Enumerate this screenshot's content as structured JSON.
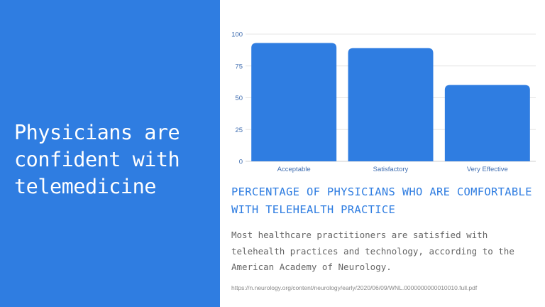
{
  "headline": "Physicians are\nconfident with\ntelemedicine",
  "title": "Percentage of physicians who are comfortable with telehealth practice",
  "description": "Most healthcare practitioners are satisfied with telehealth practices and technology, according to the American Academy of Neurology.",
  "source": "https://n.neurology.org/content/neurology/early/2020/06/09/WNL.0000000000010010.full.pdf",
  "colors": {
    "panel": "#2f7de1",
    "bar": "#2f7de1",
    "grid": "#e6e6e6",
    "axis_text": "#3f6db0"
  },
  "chart_data": {
    "type": "bar",
    "categories": [
      "Acceptable",
      "Satisfactory",
      "Very Effective"
    ],
    "values": [
      93,
      89,
      60
    ],
    "ylim": [
      0,
      100
    ],
    "yticks": [
      0,
      25,
      50,
      75,
      100
    ],
    "grid": true,
    "title": "",
    "xlabel": "",
    "ylabel": ""
  }
}
